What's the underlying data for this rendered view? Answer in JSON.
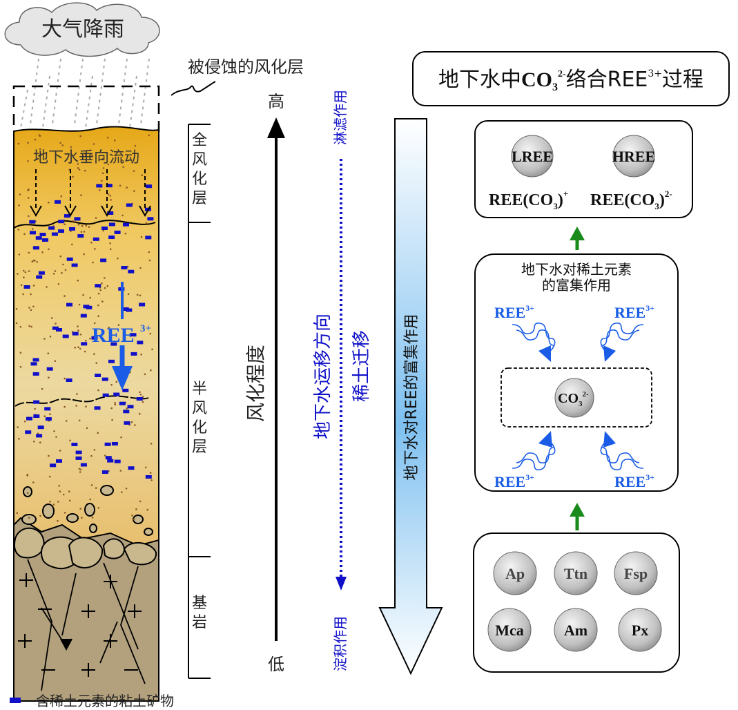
{
  "rain_cloud": "大气降雨",
  "eroded_layer": "被侵蚀的风化层",
  "vertical_flow": "地下水垂向流动",
  "ree_label": "REE",
  "ree_sup": "3+",
  "zones": [
    "全风化层",
    "半风化层",
    "基岩"
  ],
  "legend": "含稀土元素的粘土矿物",
  "degree": {
    "high": "高",
    "low": "低",
    "label": "风化程度"
  },
  "leaching": "淋滤作用",
  "deposition": "淀积作用",
  "migration_dir": "地下水运移方向",
  "ree_migration": "稀土迁移",
  "enrichment_arrow": "地下水对REE的富集作用",
  "process_title": {
    "a": "地下水中",
    "b": "CO",
    "sub3": "3",
    "sup2": "2-",
    "c": "络合REE",
    "sup3": "3+",
    "d": "过程"
  },
  "top_box": {
    "lree": "LREE",
    "hree": "HREE",
    "complex1": {
      "base": "REE(CO",
      "sub": "3",
      "close": ")",
      "sup": "+"
    },
    "complex2": {
      "base": "REE(CO",
      "sub": "3",
      "close": ")",
      "sup": "2-"
    }
  },
  "mid_box": {
    "title1": "地下水对稀土元素",
    "title2": "的富集作用",
    "ion": "REE",
    "ion_sup": "3+",
    "center": {
      "base": "CO",
      "sub": "3",
      "sup": "2-"
    }
  },
  "minerals": [
    "Ap",
    "Ttn",
    "Fsp",
    "Mca",
    "Am",
    "Px"
  ],
  "colors": {
    "blue": "#1a5ce6",
    "dark_blue": "#1010c8",
    "green": "#1a8a1a",
    "soil_top": "#e8b030",
    "bedrock": "#b0a080"
  }
}
